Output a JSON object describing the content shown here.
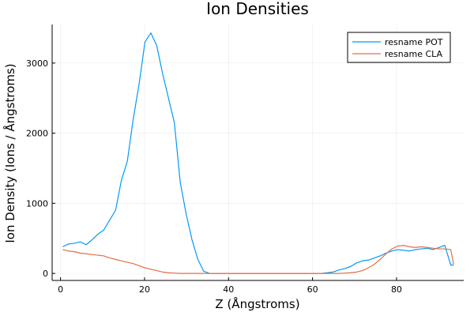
{
  "chart_data": {
    "type": "line",
    "title": "Ion Densities",
    "xlabel": "Z (Ångstroms)",
    "ylabel": "Ion Density (Ions / Ångstroms)",
    "xlim": [
      -2,
      96
    ],
    "ylim": [
      -100,
      3550
    ],
    "xticks": [
      0,
      20,
      40,
      60,
      80
    ],
    "yticks": [
      0,
      1000,
      2000,
      3000
    ],
    "grid": true,
    "legend_position": "top-right",
    "series": [
      {
        "name": "resname POT",
        "color": "#009AFA",
        "x": [
          0.5,
          1.9,
          3.3,
          4.7,
          6.1,
          7.5,
          8.9,
          10.3,
          11.7,
          13.1,
          14.5,
          15.9,
          17.3,
          18.7,
          20.1,
          21.5,
          22.9,
          24.3,
          25.7,
          27.1,
          28.5,
          29.9,
          31.3,
          32.7,
          34.1,
          35.5,
          36.9,
          38.3,
          39.7,
          41.1,
          42.5,
          43.9,
          45.3,
          46.7,
          48.1,
          49.5,
          50.9,
          52.3,
          53.7,
          55.1,
          56.5,
          57.9,
          59.3,
          60.7,
          62.1,
          63.5,
          64.9,
          66.3,
          67.7,
          69.1,
          70.5,
          71.9,
          73.3,
          74.7,
          76.1,
          77.5,
          78.9,
          80.3,
          81.7,
          83.1,
          84.5,
          85.9,
          87.3,
          88.7,
          90.1,
          91.5,
          92.9,
          93.6
        ],
        "values": [
          380,
          420,
          430,
          450,
          410,
          480,
          560,
          620,
          760,
          900,
          1330,
          1600,
          2200,
          2700,
          3300,
          3430,
          3250,
          2850,
          2500,
          2150,
          1300,
          850,
          480,
          200,
          30,
          0,
          0,
          0,
          0,
          0,
          0,
          0,
          0,
          0,
          0,
          0,
          0,
          0,
          0,
          0,
          0,
          0,
          0,
          0,
          0,
          10,
          20,
          50,
          70,
          100,
          150,
          180,
          190,
          220,
          250,
          290,
          320,
          340,
          330,
          320,
          340,
          350,
          360,
          340,
          370,
          400,
          120,
          120
        ]
      },
      {
        "name": "resname CLA",
        "color": "#E26F46",
        "x": [
          0.5,
          1.9,
          3.3,
          4.7,
          6.1,
          7.5,
          8.9,
          10.3,
          11.7,
          13.1,
          14.5,
          15.9,
          17.3,
          18.7,
          20.1,
          21.5,
          22.9,
          24.3,
          25.7,
          27.1,
          28.5,
          29.9,
          31.3,
          32.7,
          34.1,
          35.5,
          36.9,
          38.3,
          39.7,
          41.1,
          42.5,
          43.9,
          45.3,
          46.7,
          48.1,
          49.5,
          50.9,
          52.3,
          53.7,
          55.1,
          56.5,
          57.9,
          59.3,
          60.7,
          62.1,
          63.5,
          64.9,
          66.3,
          67.7,
          69.1,
          70.5,
          71.9,
          73.3,
          74.7,
          76.1,
          77.5,
          78.9,
          80.3,
          81.7,
          83.1,
          84.5,
          85.9,
          87.3,
          88.7,
          90.1,
          91.5,
          92.9,
          93.6
        ],
        "values": [
          340,
          320,
          310,
          290,
          280,
          270,
          260,
          250,
          220,
          200,
          180,
          160,
          140,
          110,
          80,
          60,
          40,
          20,
          10,
          5,
          0,
          0,
          0,
          0,
          0,
          0,
          0,
          0,
          0,
          0,
          0,
          0,
          0,
          0,
          0,
          0,
          0,
          0,
          0,
          0,
          0,
          0,
          0,
          0,
          0,
          0,
          0,
          0,
          5,
          10,
          20,
          40,
          80,
          130,
          200,
          280,
          350,
          390,
          400,
          380,
          370,
          380,
          370,
          360,
          350,
          350,
          340,
          130
        ]
      }
    ]
  }
}
